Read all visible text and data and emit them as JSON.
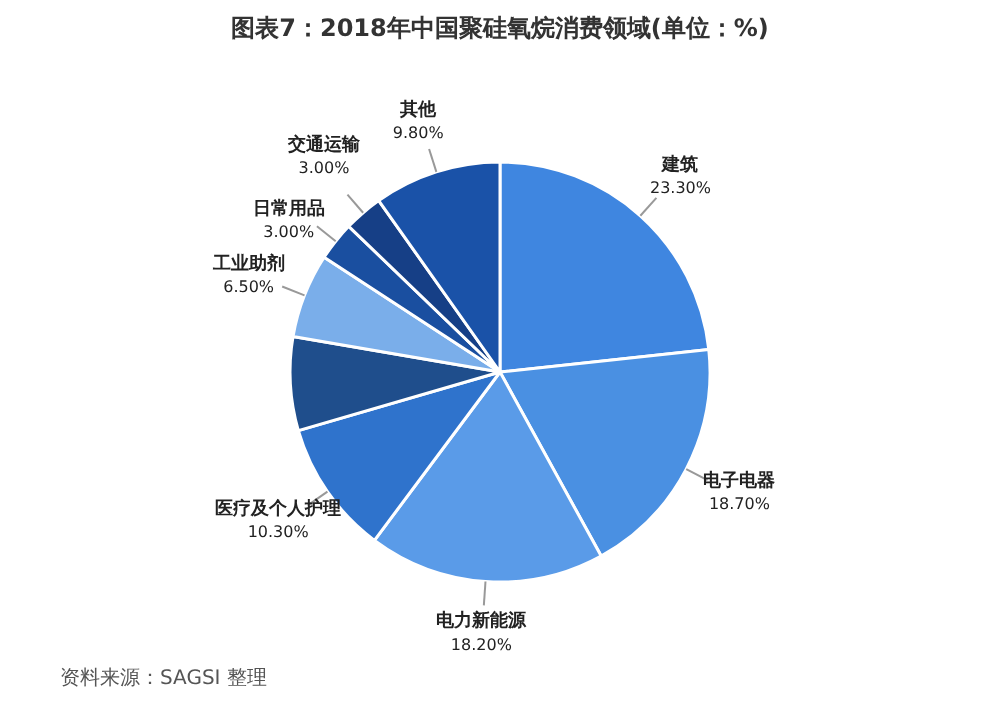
{
  "chart_data": {
    "type": "pie",
    "title": "图表7：2018年中国聚硅氧烷消费领域(单位：%)",
    "categories": [
      "建筑",
      "电子电器",
      "电力新能源",
      "医疗及个人护理",
      null,
      "工业助剂",
      "日常用品",
      "交通运输",
      "其他"
    ],
    "values": [
      23.3,
      18.7,
      18.2,
      10.3,
      7.2,
      6.5,
      3.0,
      3.0,
      9.8
    ],
    "value_labels": [
      "23.30%",
      "18.70%",
      "18.20%",
      "10.30%",
      null,
      "6.50%",
      "3.00%",
      "3.00%",
      "9.80%"
    ],
    "colors": [
      "#3f86e0",
      "#4a90e2",
      "#5a9be8",
      "#2f73cc",
      "#1f4e8c",
      "#7aaeea",
      "#1a4fa0",
      "#163f86",
      "#1a52a8"
    ],
    "annotations": [
      "资料来源：SAGSI 整理"
    ],
    "legend": false
  }
}
